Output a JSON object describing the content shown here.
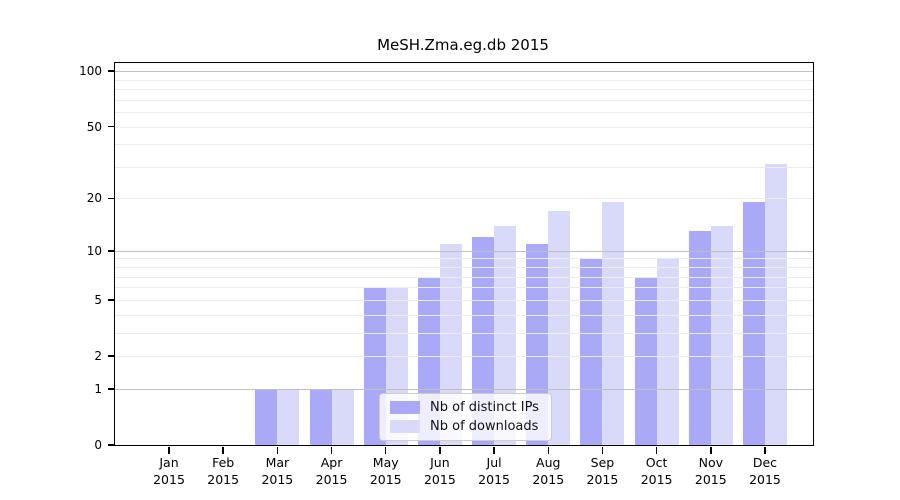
{
  "chart_data": {
    "type": "bar",
    "title": "MeSH.Zma.eg.db 2015",
    "categories": [
      "Jan",
      "Feb",
      "Mar",
      "Apr",
      "May",
      "Jun",
      "Jul",
      "Aug",
      "Sep",
      "Oct",
      "Nov",
      "Dec"
    ],
    "category_year": "2015",
    "series": [
      {
        "name": "Nb of distinct IPs",
        "color": "#a9a9f7",
        "values": [
          0,
          0,
          1,
          1,
          6,
          7,
          12,
          11,
          9,
          7,
          13,
          19
        ]
      },
      {
        "name": "Nb of downloads",
        "color": "#d9d9fa",
        "values": [
          0,
          0,
          1,
          1,
          6,
          11,
          14,
          17,
          19,
          9,
          14,
          31
        ]
      }
    ],
    "yscale": "log1p",
    "ylim": [
      0,
      111
    ],
    "yticks": [
      0,
      1,
      2,
      5,
      10,
      20,
      50,
      100
    ],
    "ytick_major_gridlines": [
      1,
      10,
      100
    ],
    "ytick_minor_gridlines": [
      3,
      4,
      6,
      7,
      8,
      9,
      30,
      40,
      60,
      70,
      80,
      90
    ],
    "grid": "horizontal",
    "legend_position": "inside-bottom-center",
    "colors": {
      "axis": "#000000",
      "major_grid": "#bfbfbf",
      "minor_grid": "#ececec",
      "background": "#ffffff"
    }
  }
}
